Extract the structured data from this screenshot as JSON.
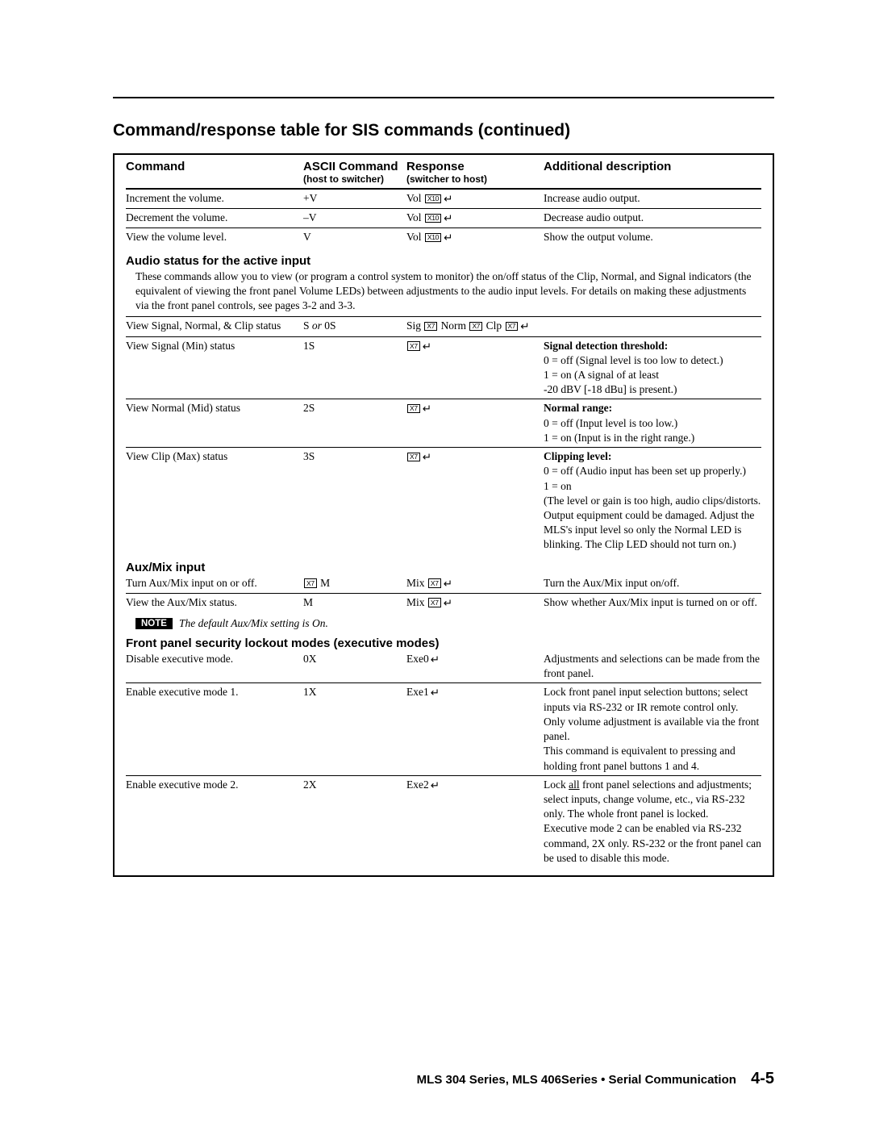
{
  "title": "Command/response table for SIS commands (continued)",
  "headers": {
    "command": "Command",
    "ascii": "ASCII Command",
    "ascii_sub": "(host to switcher)",
    "response": "Response",
    "response_sub": "(switcher to host)",
    "desc": "Additional description"
  },
  "volume_rows": [
    {
      "cmd": "Increment the volume.",
      "ascii": "+V",
      "resp_prefix": "Vol ",
      "resp_box": "X10",
      "desc": "Increase audio output."
    },
    {
      "cmd": "Decrement the volume.",
      "ascii": "–V",
      "resp_prefix": "Vol ",
      "resp_box": "X10",
      "desc": "Decrease audio output."
    },
    {
      "cmd": "View the volume level.",
      "ascii": "V",
      "resp_prefix": "Vol ",
      "resp_box": "X10",
      "desc": "Show the output volume."
    }
  ],
  "audio_status": {
    "heading": "Audio status for the active input",
    "intro": "These commands allow you to view (or program a control system to monitor) the on/off status of the Clip, Normal, and Signal indicators (the equivalent of viewing the front panel Volume LEDs) between adjustments to the audio input levels. For details on making these adjustments via the front panel controls, see pages 3-2 and 3-3.",
    "rows": {
      "all": {
        "cmd": "View Signal, Normal, & Clip status",
        "ascii_pre": "S ",
        "ascii_ital": "or",
        "ascii_post": " 0S"
      },
      "min": {
        "cmd": "View Signal (Min) status",
        "ascii": "1S",
        "desc_bold": "Signal detection threshold:",
        "desc_lines": "0 = off  (Signal level is too low to detect.)\n1 = on  (A signal of at least\n-20 dBV [-18 dBu] is present.)"
      },
      "mid": {
        "cmd": "View Normal (Mid) status",
        "ascii": "2S",
        "desc_bold": "Normal range:",
        "desc_lines": "0 = off  (Input level is too low.)\n1 = on  (Input is in the right range.)"
      },
      "max": {
        "cmd": "View Clip (Max) status",
        "ascii": "3S",
        "desc_bold": "Clipping level:",
        "desc_lines": "0 = off  (Audio input has been set up properly.)\n1 = on\n(The level or gain is too high, audio clips/distorts.  Output equipment could be damaged. Adjust the MLS's input level so only the Normal LED is blinking.  The Clip LED should not turn on.)"
      }
    }
  },
  "auxmix": {
    "heading": "Aux/Mix input",
    "rows": [
      {
        "cmd": "Turn Aux/Mix input on or off.",
        "ascii_box": "X7",
        "ascii_post": " M",
        "resp_prefix": "Mix ",
        "resp_box": "X7",
        "desc": "Turn the Aux/Mix input on/off."
      },
      {
        "cmd": "View the Aux/Mix status.",
        "ascii": "M",
        "resp_prefix": "Mix ",
        "resp_box": "X7",
        "desc": "Show whether Aux/Mix input is turned on or off."
      }
    ],
    "note_badge": "NOTE",
    "note_text": "The default Aux/Mix setting is On."
  },
  "executive": {
    "heading": "Front panel security lockout modes (executive modes)",
    "rows": [
      {
        "cmd": "Disable executive mode.",
        "ascii": "0X",
        "resp": "Exe0",
        "desc": "Adjustments and selections can be made from the front panel."
      },
      {
        "cmd": "Enable executive mode 1.",
        "ascii": "1X",
        "resp": "Exe1",
        "desc": "Lock front panel input selection buttons; select inputs via RS-232 or IR remote control only.  Only volume adjustment is available via the front panel.\nThis command is equivalent to pressing and holding front panel buttons 1 and 4."
      },
      {
        "cmd": "Enable executive mode 2.",
        "ascii": "2X",
        "resp": "Exe2",
        "desc_html": "Lock <span class=\"u\">all</span> front panel selections and adjustments; select inputs, change volume, etc., via RS-232 only.  The whole front panel is locked.\nExecutive mode 2 can be enabled via RS-232 command, 2X only.  RS-232 or the front panel can be used to disable this mode."
      }
    ]
  },
  "footer": {
    "text": "MLS 304 Series, MLS 406Series • Serial Communication",
    "page": "4-5"
  },
  "glyphs": {
    "x7": "X7",
    "x10": "X10",
    "ret": "↵",
    "sig": "Sig ",
    "norm": " Norm ",
    "clp": " Clp "
  }
}
